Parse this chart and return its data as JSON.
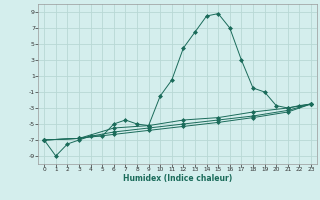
{
  "title": "",
  "xlabel": "Humidex (Indice chaleur)",
  "ylabel": "",
  "bg_color": "#d4eeed",
  "grid_color": "#b8d8d5",
  "line_color": "#1a6b5a",
  "xlim": [
    -0.5,
    23.5
  ],
  "ylim": [
    -10,
    10
  ],
  "yticks": [
    -9,
    -7,
    -5,
    -3,
    -1,
    1,
    3,
    5,
    7,
    9
  ],
  "xticks": [
    0,
    1,
    2,
    3,
    4,
    5,
    6,
    7,
    8,
    9,
    10,
    11,
    12,
    13,
    14,
    15,
    16,
    17,
    18,
    19,
    20,
    21,
    22,
    23
  ],
  "series": [
    {
      "x": [
        0,
        1,
        2,
        3,
        4,
        5,
        6,
        7,
        8,
        9,
        10,
        11,
        12,
        13,
        14,
        15,
        16,
        17,
        18,
        19,
        20,
        21,
        22,
        23
      ],
      "y": [
        -7,
        -9,
        -7.5,
        -7,
        -6.5,
        -6.5,
        -5,
        -4.5,
        -5,
        -5.2,
        -1.5,
        0.5,
        4.5,
        6.5,
        8.5,
        8.8,
        7,
        3,
        -0.5,
        -1,
        -2.7,
        -3,
        -2.7,
        -2.5
      ],
      "marker": "D",
      "ms": 2.0
    },
    {
      "x": [
        0,
        3,
        6,
        9,
        12,
        15,
        18,
        21,
        23
      ],
      "y": [
        -7,
        -6.8,
        -5.5,
        -5.2,
        -4.5,
        -4.2,
        -3.5,
        -3,
        -2.5
      ],
      "marker": "D",
      "ms": 2.0
    },
    {
      "x": [
        0,
        3,
        6,
        9,
        12,
        15,
        18,
        21,
        23
      ],
      "y": [
        -7,
        -6.8,
        -6.0,
        -5.5,
        -5.0,
        -4.5,
        -4.0,
        -3.3,
        -2.5
      ],
      "marker": "D",
      "ms": 2.0
    },
    {
      "x": [
        0,
        3,
        6,
        9,
        12,
        15,
        18,
        21,
        23
      ],
      "y": [
        -7,
        -6.8,
        -6.3,
        -5.8,
        -5.3,
        -4.8,
        -4.2,
        -3.5,
        -2.5
      ],
      "marker": "D",
      "ms": 2.0
    }
  ]
}
